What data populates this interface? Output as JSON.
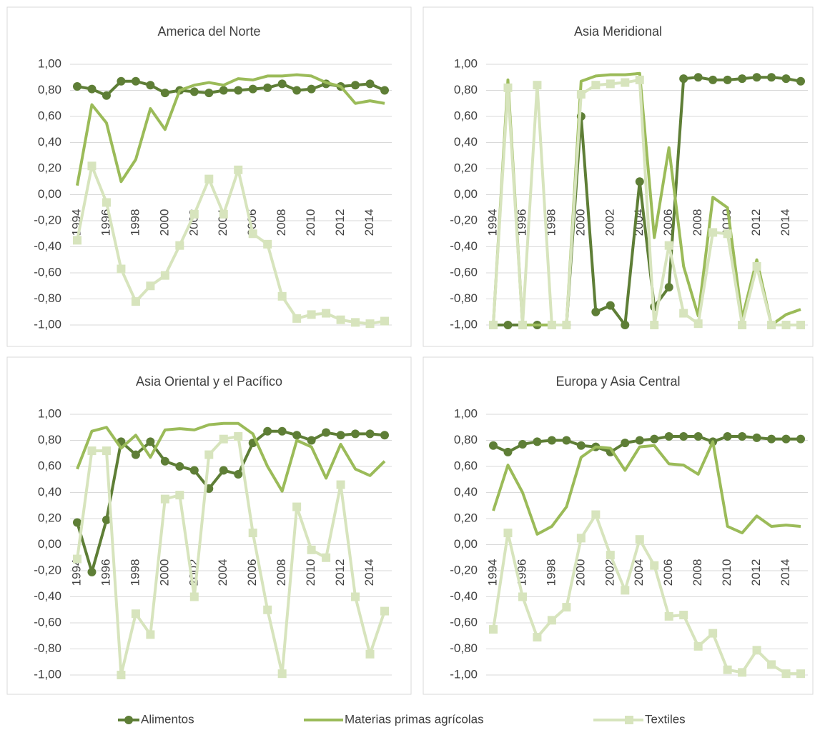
{
  "chart_data": [
    {
      "type": "line",
      "title": "America del Norte",
      "categories": [
        "1994",
        null,
        "1996",
        null,
        "1998",
        null,
        "2000",
        null,
        "2002",
        null,
        "2004",
        null,
        "2006",
        null,
        "2008",
        null,
        "2010",
        null,
        "2012",
        null,
        "2014",
        null
      ],
      "ylim": [
        -1,
        1
      ],
      "yticks": [
        {
          "value": -1,
          "label": "-1,00"
        },
        {
          "value": -0.8,
          "label": "-0,80"
        },
        {
          "value": -0.6,
          "label": "-0,60"
        },
        {
          "value": -0.4,
          "label": "-0,40"
        },
        {
          "value": -0.2,
          "label": "-0,20"
        },
        {
          "value": 0,
          "label": "0,00"
        },
        {
          "value": 0.2,
          "label": "0,20"
        },
        {
          "value": 0.4,
          "label": "0,40"
        },
        {
          "value": 0.6,
          "label": "0,60"
        },
        {
          "value": 0.8,
          "label": "0,80"
        },
        {
          "value": 1,
          "label": "1,00"
        }
      ],
      "grid": true,
      "series": [
        {
          "name": "Alimentos",
          "color": "#5e7e36",
          "marker": "circle",
          "values": [
            0.83,
            0.81,
            0.76,
            0.87,
            0.87,
            0.84,
            0.78,
            0.8,
            0.79,
            0.78,
            0.8,
            0.8,
            0.81,
            0.82,
            0.85,
            0.8,
            0.81,
            0.85,
            0.83,
            0.84,
            0.85,
            0.8
          ]
        },
        {
          "name": "Materias primas agrícolas",
          "color": "#9bbb59",
          "marker": "none",
          "values": [
            0.07,
            0.69,
            0.55,
            0.1,
            0.27,
            0.66,
            0.5,
            0.8,
            0.84,
            0.86,
            0.84,
            0.89,
            0.88,
            0.91,
            0.91,
            0.92,
            0.91,
            0.86,
            0.83,
            0.7,
            0.72,
            0.7
          ]
        },
        {
          "name": "Textiles",
          "color": "#d7e4bd",
          "marker": "square",
          "values": [
            -0.35,
            0.22,
            -0.06,
            -0.57,
            -0.82,
            -0.7,
            -0.62,
            -0.39,
            -0.15,
            0.12,
            -0.15,
            0.19,
            -0.3,
            -0.38,
            -0.78,
            -0.95,
            -0.92,
            -0.91,
            -0.96,
            -0.98,
            -0.99,
            -0.97
          ]
        }
      ]
    },
    {
      "type": "line",
      "title": "Asia Meridional",
      "categories": [
        "1994",
        null,
        "1996",
        null,
        "1998",
        null,
        "2000",
        null,
        "2002",
        null,
        "2004",
        null,
        "2006",
        null,
        "2008",
        null,
        "2010",
        null,
        "2012",
        null,
        "2014",
        null
      ],
      "ylim": [
        -1,
        1
      ],
      "yticks": [
        {
          "value": -1,
          "label": "-1,00"
        },
        {
          "value": -0.8,
          "label": "-0,80"
        },
        {
          "value": -0.6,
          "label": "-0,60"
        },
        {
          "value": -0.4,
          "label": "-0,40"
        },
        {
          "value": -0.2,
          "label": "-0,20"
        },
        {
          "value": 0,
          "label": "0,00"
        },
        {
          "value": 0.2,
          "label": "0,20"
        },
        {
          "value": 0.4,
          "label": "0,40"
        },
        {
          "value": 0.6,
          "label": "0,60"
        },
        {
          "value": 0.8,
          "label": "0,80"
        },
        {
          "value": 1,
          "label": "1,00"
        }
      ],
      "grid": true,
      "series": [
        {
          "name": "Alimentos",
          "color": "#5e7e36",
          "marker": "circle",
          "values": [
            -1,
            -1,
            -1,
            -1,
            -1,
            -1,
            0.6,
            -0.9,
            -0.85,
            -1,
            0.1,
            -0.86,
            -0.71,
            0.89,
            0.9,
            0.88,
            0.88,
            0.89,
            0.9,
            0.9,
            0.89,
            0.87
          ]
        },
        {
          "name": "Materias primas agrícolas",
          "color": "#9bbb59",
          "marker": "none",
          "values": [
            -1,
            0.88,
            -1,
            -1,
            -1,
            -1,
            0.87,
            0.91,
            0.92,
            0.92,
            0.93,
            -0.33,
            0.36,
            -0.55,
            -0.93,
            -0.02,
            -0.1,
            -0.95,
            -0.5,
            -1,
            -0.92,
            -0.88
          ]
        },
        {
          "name": "Textiles",
          "color": "#d7e4bd",
          "marker": "square",
          "values": [
            -1,
            0.82,
            -1,
            0.84,
            -1,
            -1,
            0.77,
            0.84,
            0.85,
            0.86,
            0.88,
            -1,
            -0.39,
            -0.91,
            -0.99,
            -0.29,
            -0.3,
            -1,
            -0.55,
            -1,
            -1,
            -1
          ]
        }
      ]
    },
    {
      "type": "line",
      "title": "Asia Oriental y el Pacífico",
      "categories": [
        "1994",
        null,
        "1996",
        null,
        "1998",
        null,
        "2000",
        null,
        "2002",
        null,
        "2004",
        null,
        "2006",
        null,
        "2008",
        null,
        "2010",
        null,
        "2012",
        null,
        "2014",
        null
      ],
      "ylim": [
        -1,
        1
      ],
      "yticks": [
        {
          "value": -1,
          "label": "-1,00"
        },
        {
          "value": -0.8,
          "label": "-0,80"
        },
        {
          "value": -0.6,
          "label": "-0,60"
        },
        {
          "value": -0.4,
          "label": "-0,40"
        },
        {
          "value": -0.2,
          "label": "-0,20"
        },
        {
          "value": 0,
          "label": "0,00"
        },
        {
          "value": 0.2,
          "label": "0,20"
        },
        {
          "value": 0.4,
          "label": "0,40"
        },
        {
          "value": 0.6,
          "label": "0,60"
        },
        {
          "value": 0.8,
          "label": "0,80"
        },
        {
          "value": 1,
          "label": "1,00"
        }
      ],
      "grid": true,
      "series": [
        {
          "name": "Alimentos",
          "color": "#5e7e36",
          "marker": "circle",
          "values": [
            0.17,
            -0.21,
            0.19,
            0.79,
            0.69,
            0.79,
            0.64,
            0.6,
            0.57,
            0.43,
            0.57,
            0.54,
            0.78,
            0.87,
            0.87,
            0.84,
            0.8,
            0.86,
            0.84,
            0.85,
            0.85,
            0.84
          ]
        },
        {
          "name": "Materias primas agrícolas",
          "color": "#9bbb59",
          "marker": "none",
          "values": [
            0.58,
            0.87,
            0.9,
            0.74,
            0.84,
            0.67,
            0.88,
            0.89,
            0.88,
            0.92,
            0.93,
            0.93,
            0.85,
            0.6,
            0.41,
            0.8,
            0.75,
            0.51,
            0.77,
            0.58,
            0.53,
            0.64
          ]
        },
        {
          "name": "Textiles",
          "color": "#d7e4bd",
          "marker": "square",
          "values": [
            -0.11,
            0.72,
            0.72,
            -1,
            -0.53,
            -0.69,
            0.35,
            0.38,
            -0.4,
            0.69,
            0.81,
            0.83,
            0.09,
            -0.5,
            -0.99,
            0.29,
            -0.04,
            -0.1,
            0.46,
            -0.4,
            -0.84,
            -0.51
          ]
        }
      ]
    },
    {
      "type": "line",
      "title": "Europa y Asia Central",
      "categories": [
        "1994",
        null,
        "1996",
        null,
        "1998",
        null,
        "2000",
        null,
        "2002",
        null,
        "2004",
        null,
        "2006",
        null,
        "2008",
        null,
        "2010",
        null,
        "2012",
        null,
        "2014",
        null
      ],
      "ylim": [
        -1,
        1
      ],
      "yticks": [
        {
          "value": -1,
          "label": "-1,00"
        },
        {
          "value": -0.8,
          "label": "-0,80"
        },
        {
          "value": -0.6,
          "label": "-0,60"
        },
        {
          "value": -0.4,
          "label": "-0,40"
        },
        {
          "value": -0.2,
          "label": "-0,20"
        },
        {
          "value": 0,
          "label": "0,00"
        },
        {
          "value": 0.2,
          "label": "0,20"
        },
        {
          "value": 0.4,
          "label": "0,40"
        },
        {
          "value": 0.6,
          "label": "0,60"
        },
        {
          "value": 0.8,
          "label": "0,80"
        },
        {
          "value": 1,
          "label": "1,00"
        }
      ],
      "grid": true,
      "series": [
        {
          "name": "Alimentos",
          "color": "#5e7e36",
          "marker": "circle",
          "values": [
            0.76,
            0.71,
            0.77,
            0.79,
            0.8,
            0.8,
            0.76,
            0.75,
            0.71,
            0.78,
            0.8,
            0.81,
            0.83,
            0.83,
            0.83,
            0.79,
            0.83,
            0.83,
            0.82,
            0.81,
            0.81,
            0.81
          ]
        },
        {
          "name": "Materias primas agrícolas",
          "color": "#9bbb59",
          "marker": "none",
          "values": [
            0.26,
            0.61,
            0.4,
            0.08,
            0.14,
            0.29,
            0.67,
            0.75,
            0.74,
            0.57,
            0.75,
            0.76,
            0.62,
            0.61,
            0.54,
            0.79,
            0.14,
            0.09,
            0.22,
            0.14,
            0.15,
            0.14
          ]
        },
        {
          "name": "Textiles",
          "color": "#d7e4bd",
          "marker": "square",
          "values": [
            -0.65,
            0.09,
            -0.4,
            -0.71,
            -0.58,
            -0.48,
            0.05,
            0.23,
            -0.08,
            -0.35,
            0.04,
            -0.16,
            -0.55,
            -0.54,
            -0.78,
            -0.68,
            -0.96,
            -0.98,
            -0.81,
            -0.92,
            -0.99,
            -0.99
          ]
        }
      ]
    }
  ]
}
